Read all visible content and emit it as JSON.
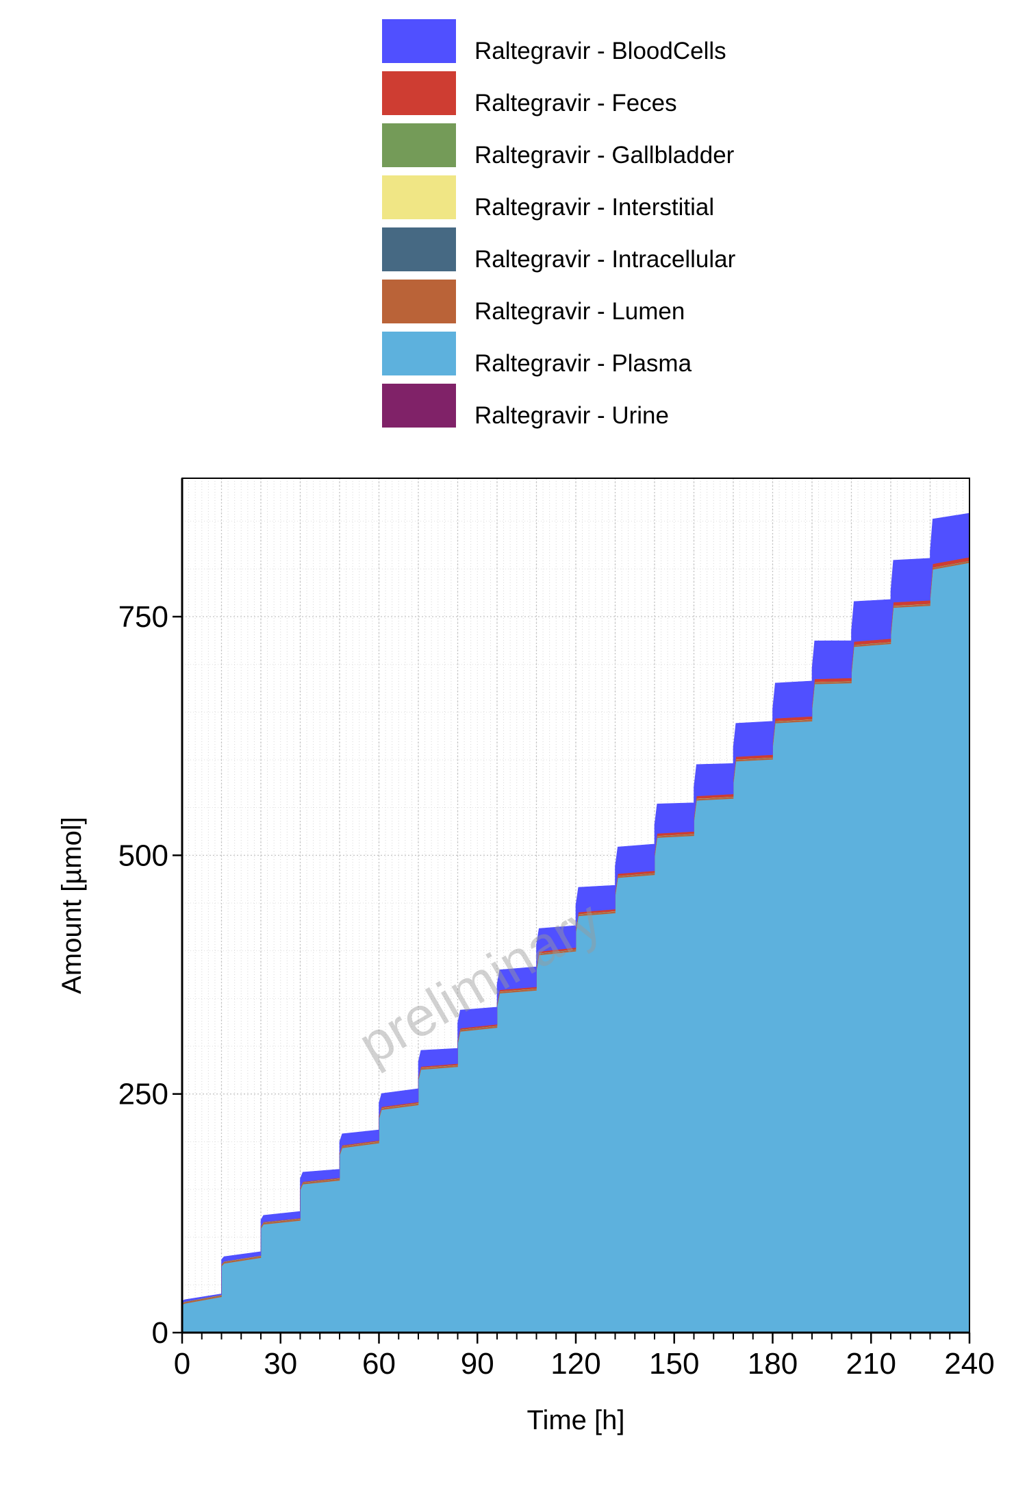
{
  "chart_data": {
    "type": "area",
    "stacked": true,
    "step_interval_h": 12,
    "x_label": "Time [h]",
    "y_label": "Amount [µmol]",
    "xlim": [
      0,
      240
    ],
    "ylim": [
      0,
      895
    ],
    "x_ticks": [
      "0",
      "30",
      "60",
      "90",
      "120",
      "150",
      "180",
      "210",
      "240"
    ],
    "x_tick_values": [
      0,
      30,
      60,
      90,
      120,
      150,
      180,
      210,
      240
    ],
    "y_ticks": [
      "0",
      "250",
      "500",
      "750"
    ],
    "y_tick_values": [
      0,
      250,
      500,
      750
    ],
    "grid": "on",
    "legend_placement": "top",
    "watermark": "preliminary",
    "series": [
      {
        "name": "Raltegravir - BloodCells",
        "color": "#5050FF",
        "step_start": [
          2,
          5,
          7,
          10,
          12,
          14,
          17,
          19,
          21,
          24,
          26,
          28,
          31,
          33,
          35,
          37,
          40,
          42,
          44,
          47
        ],
        "step_end": [
          1,
          4,
          7,
          9,
          11,
          14,
          16,
          18,
          21,
          23,
          25,
          28,
          30,
          32,
          35,
          37,
          39,
          41,
          44,
          46
        ]
      },
      {
        "name": "Raltegravir - Feces",
        "color": "#CE3D32",
        "step_start": [
          0,
          0.2,
          0.4,
          0.6,
          0.8,
          1,
          1.2,
          1.4,
          1.6,
          1.8,
          2,
          2.2,
          2.4,
          2.6,
          2.8,
          3,
          3.2,
          3.4,
          3.6,
          3.8
        ],
        "step_end": [
          0.1,
          0.3,
          0.5,
          0.7,
          0.9,
          1.1,
          1.3,
          1.5,
          1.7,
          1.9,
          2.1,
          2.3,
          2.5,
          2.7,
          2.9,
          3.1,
          3.3,
          3.5,
          3.7,
          3.9
        ]
      },
      {
        "name": "Raltegravir - Gallbladder",
        "color": "#749B58",
        "step_start": [
          0.1,
          0.1,
          0.1,
          0.1,
          0.1,
          0.1,
          0.1,
          0.1,
          0.1,
          0.1,
          0.1,
          0.1,
          0.1,
          0.1,
          0.1,
          0.1,
          0.1,
          0.1,
          0.1,
          0.1
        ],
        "step_end": [
          0.1,
          0.1,
          0.1,
          0.1,
          0.1,
          0.1,
          0.1,
          0.1,
          0.1,
          0.1,
          0.1,
          0.1,
          0.1,
          0.1,
          0.1,
          0.1,
          0.1,
          0.1,
          0.1,
          0.1
        ]
      },
      {
        "name": "Raltegravir - Interstitial",
        "color": "#F0E685",
        "step_start": [
          0.2,
          0.2,
          0.2,
          0.2,
          0.2,
          0.2,
          0.2,
          0.2,
          0.2,
          0.2,
          0.2,
          0.2,
          0.2,
          0.2,
          0.2,
          0.2,
          0.2,
          0.2,
          0.2,
          0.2
        ],
        "step_end": [
          0.2,
          0.2,
          0.2,
          0.2,
          0.2,
          0.2,
          0.2,
          0.2,
          0.2,
          0.2,
          0.2,
          0.2,
          0.2,
          0.2,
          0.2,
          0.2,
          0.2,
          0.2,
          0.2,
          0.2
        ]
      },
      {
        "name": "Raltegravir - Intracellular",
        "color": "#466983",
        "step_start": [
          0.2,
          0.2,
          0.2,
          0.2,
          0.2,
          0.2,
          0.2,
          0.2,
          0.2,
          0.2,
          0.2,
          0.2,
          0.2,
          0.2,
          0.2,
          0.2,
          0.2,
          0.2,
          0.2,
          0.2
        ],
        "step_end": [
          0.2,
          0.2,
          0.2,
          0.2,
          0.2,
          0.2,
          0.2,
          0.2,
          0.2,
          0.2,
          0.2,
          0.2,
          0.2,
          0.2,
          0.2,
          0.2,
          0.2,
          0.2,
          0.2,
          0.2
        ]
      },
      {
        "name": "Raltegravir - Lumen",
        "color": "#BA6338",
        "step_start": [
          1.5,
          1.5,
          1.5,
          1.5,
          1.5,
          1.5,
          1.5,
          1.5,
          1.5,
          1.5,
          1.5,
          1.5,
          1.5,
          1.5,
          1.5,
          1.5,
          1.5,
          1.5,
          1.5,
          1.5
        ],
        "step_end": [
          1.5,
          1.5,
          1.5,
          1.5,
          1.5,
          1.5,
          1.5,
          1.5,
          1.5,
          1.5,
          1.5,
          1.5,
          1.5,
          1.5,
          1.5,
          1.5,
          1.5,
          1.5,
          1.5,
          1.5
        ]
      },
      {
        "name": "Raltegravir - Plasma",
        "color": "#5DB1DD",
        "step_start": [
          30,
          72,
          113,
          155,
          193,
          233,
          275,
          315,
          355,
          395,
          436,
          476,
          518,
          557,
          598,
          638,
          679,
          718,
          759,
          799
        ],
        "step_end": [
          37,
          78,
          117,
          159,
          198,
          238,
          278,
          319,
          358,
          399,
          439,
          479,
          520,
          559,
          600,
          640,
          680,
          721,
          761,
          806
        ]
      },
      {
        "name": "Raltegravir - Urine",
        "color": "#802268",
        "step_start": [
          0.5,
          0.5,
          0.5,
          0.5,
          0.5,
          0.5,
          0.5,
          0.5,
          0.5,
          0.5,
          0.5,
          0.5,
          0.5,
          0.5,
          0.5,
          0.5,
          0.5,
          0.5,
          0.5,
          0.5
        ],
        "step_end": [
          0.5,
          0.5,
          0.5,
          0.5,
          0.5,
          0.5,
          0.5,
          0.5,
          0.5,
          0.5,
          0.5,
          0.5,
          0.5,
          0.5,
          0.5,
          0.5,
          0.5,
          0.5,
          0.5,
          0.5
        ]
      }
    ]
  }
}
